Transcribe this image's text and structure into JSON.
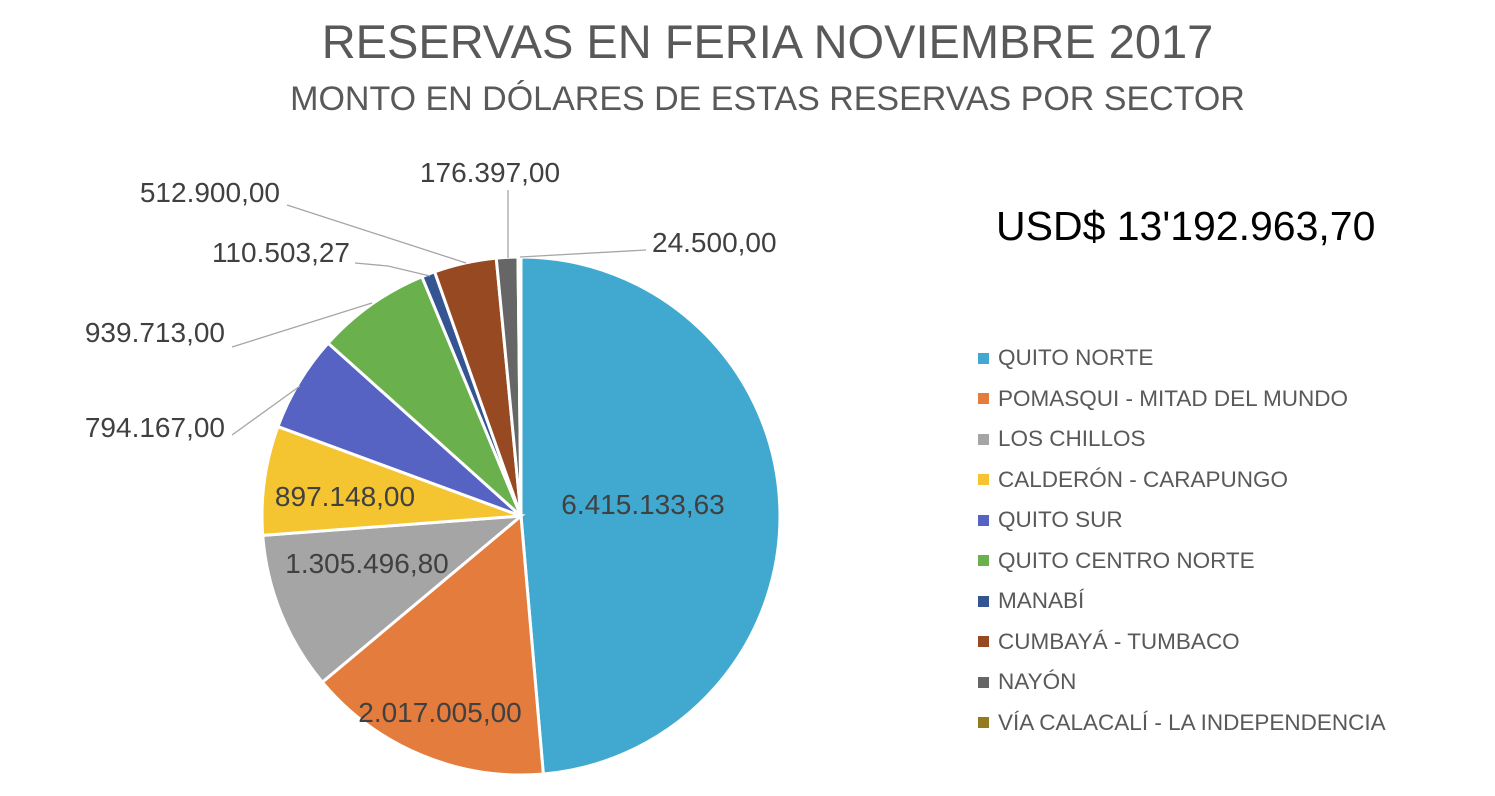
{
  "chart_data": {
    "type": "pie",
    "title": "RESERVAS EN FERIA NOVIEMBRE 2017",
    "subtitle": "MONTO EN DÓLARES DE ESTAS RESERVAS POR SECTOR",
    "annotation": "USD$ 13'192.963,70",
    "legend_position": "right",
    "categories": [
      "QUITO NORTE",
      "POMASQUI - MITAD DEL MUNDO",
      "LOS CHILLOS",
      "CALDERÓN - CARAPUNGO",
      "QUITO SUR",
      "QUITO CENTRO NORTE",
      "MANABÍ",
      "CUMBAYÁ - TUMBACO",
      "NAYÓN",
      "VÍA CALACALÍ - LA INDEPENDENCIA"
    ],
    "values": [
      6415133.63,
      2017005.0,
      1305496.8,
      897148.0,
      794167.0,
      939713.0,
      110503.27,
      512900.0,
      176397.0,
      24500.0
    ],
    "data_labels": [
      "6.415.133,63",
      "2.017.005,00",
      "1.305.496,80",
      "897.148,00",
      "794.167,00",
      "939.713,00",
      "110.503,27",
      "512.900,00",
      "176.397,00",
      "24.500,00"
    ],
    "colors": [
      "#41A9CF",
      "#E37C3C",
      "#A5A5A5",
      "#F5C431",
      "#5763C2",
      "#6AB04C",
      "#345591",
      "#974A22",
      "#666666",
      "#937A1F"
    ]
  }
}
